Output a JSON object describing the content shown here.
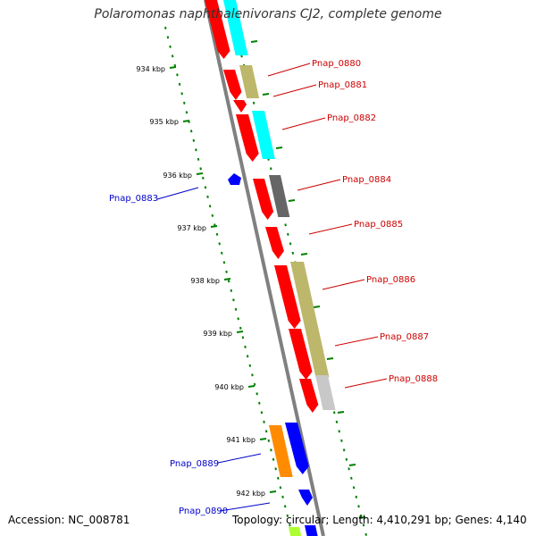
{
  "title": "Polaromonas naphthalenivorans CJ2, complete genome",
  "footer": {
    "accession": "Accession: NC_008781",
    "summary": "Topology: circular; Length: 4,410,291 bp; Genes: 4,140"
  },
  "scale_labels": [
    "934 kbp",
    "935 kbp",
    "936 kbp",
    "937 kbp",
    "938 kbp",
    "939 kbp",
    "940 kbp",
    "941 kbp",
    "942 kbp"
  ],
  "colors": {
    "red": "#ff0000",
    "cyan": "#00ffff",
    "khaki": "#bdb76b",
    "gray": "#666666",
    "lightgray": "#c8c8c8",
    "blue": "#0000ff",
    "orange": "#ff8c00",
    "lime": "#adff2f",
    "backbone": "#808080",
    "tick": "#008000",
    "label_red": "#cc0000",
    "label_blue": "#0000cc"
  },
  "gene_labels": [
    {
      "text": "Pnap_0880",
      "color": "red"
    },
    {
      "text": "Pnap_0881",
      "color": "red"
    },
    {
      "text": "Pnap_0882",
      "color": "red"
    },
    {
      "text": "Pnap_0884",
      "color": "red"
    },
    {
      "text": "Pnap_0883",
      "color": "blue"
    },
    {
      "text": "Pnap_0885",
      "color": "red"
    },
    {
      "text": "Pnap_0886",
      "color": "red"
    },
    {
      "text": "Pnap_0887",
      "color": "red"
    },
    {
      "text": "Pnap_0888",
      "color": "red"
    },
    {
      "text": "Pnap_0889",
      "color": "blue"
    },
    {
      "text": "Pnap_0890",
      "color": "blue"
    }
  ]
}
